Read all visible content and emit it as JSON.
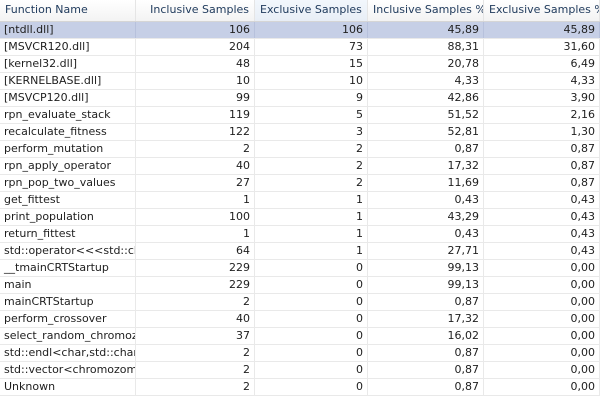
{
  "headers": {
    "function_name": "Function Name",
    "inclusive_samples": "Inclusive Samples",
    "exclusive_samples": "Exclusive Samples",
    "inclusive_pct": "Inclusive Samples %",
    "exclusive_pct": "Exclusive Samples %"
  },
  "sort_icon": "sort-descending-icon",
  "rows": [
    {
      "name": "[ntdll.dll]",
      "inc": "106",
      "exc": "106",
      "incp": "45,89",
      "excp": "45,89"
    },
    {
      "name": "[MSVCR120.dll]",
      "inc": "204",
      "exc": "73",
      "incp": "88,31",
      "excp": "31,60"
    },
    {
      "name": "[kernel32.dll]",
      "inc": "48",
      "exc": "15",
      "incp": "20,78",
      "excp": "6,49"
    },
    {
      "name": "[KERNELBASE.dll]",
      "inc": "10",
      "exc": "10",
      "incp": "4,33",
      "excp": "4,33"
    },
    {
      "name": "[MSVCP120.dll]",
      "inc": "99",
      "exc": "9",
      "incp": "42,86",
      "excp": "3,90"
    },
    {
      "name": "rpn_evaluate_stack",
      "inc": "119",
      "exc": "5",
      "incp": "51,52",
      "excp": "2,16"
    },
    {
      "name": "recalculate_fitness",
      "inc": "122",
      "exc": "3",
      "incp": "52,81",
      "excp": "1,30"
    },
    {
      "name": "perform_mutation",
      "inc": "2",
      "exc": "2",
      "incp": "0,87",
      "excp": "0,87"
    },
    {
      "name": "rpn_apply_operator",
      "inc": "40",
      "exc": "2",
      "incp": "17,32",
      "excp": "0,87"
    },
    {
      "name": "rpn_pop_two_values",
      "inc": "27",
      "exc": "2",
      "incp": "11,69",
      "excp": "0,87"
    },
    {
      "name": "get_fittest",
      "inc": "1",
      "exc": "1",
      "incp": "0,43",
      "excp": "0,43"
    },
    {
      "name": "print_population",
      "inc": "100",
      "exc": "1",
      "incp": "43,29",
      "excp": "0,43"
    },
    {
      "name": "return_fittest",
      "inc": "1",
      "exc": "1",
      "incp": "0,43",
      "excp": "0,43"
    },
    {
      "name": "std::operator<<<std::char_tr",
      "inc": "64",
      "exc": "1",
      "incp": "27,71",
      "excp": "0,43"
    },
    {
      "name": "__tmainCRTStartup",
      "inc": "229",
      "exc": "0",
      "incp": "99,13",
      "excp": "0,00"
    },
    {
      "name": "main",
      "inc": "229",
      "exc": "0",
      "incp": "99,13",
      "excp": "0,00"
    },
    {
      "name": "mainCRTStartup",
      "inc": "2",
      "exc": "0",
      "incp": "0,87",
      "excp": "0,00"
    },
    {
      "name": "perform_crossover",
      "inc": "40",
      "exc": "0",
      "incp": "17,32",
      "excp": "0,00"
    },
    {
      "name": "select_random_chromozome",
      "inc": "37",
      "exc": "0",
      "incp": "16,02",
      "excp": "0,00"
    },
    {
      "name": "std::endl<char,std::char_trai",
      "inc": "2",
      "exc": "0",
      "incp": "0,87",
      "excp": "0,00"
    },
    {
      "name": "std::vector<chromozome *,s",
      "inc": "2",
      "exc": "0",
      "incp": "0,87",
      "excp": "0,00"
    },
    {
      "name": "Unknown",
      "inc": "2",
      "exc": "0",
      "incp": "0,87",
      "excp": "0,00"
    }
  ],
  "selected_row": 0,
  "colors": {
    "selection": "#c6cfe6",
    "header_text": "#1e395b"
  }
}
